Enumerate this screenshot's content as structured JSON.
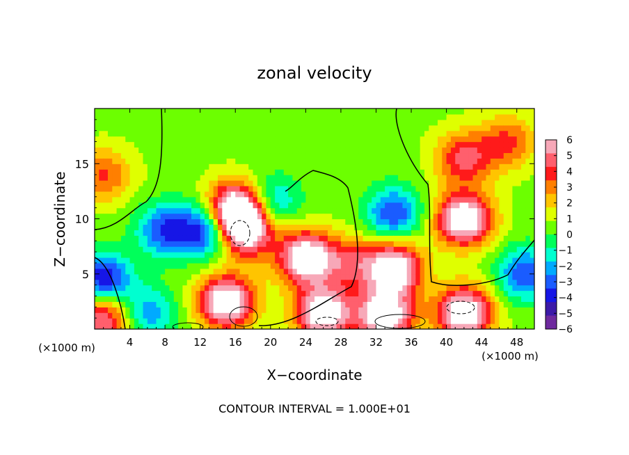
{
  "chart_data": {
    "type": "heatmap",
    "title": "zonal velocity",
    "xlabel": "X−coordinate",
    "ylabel": "Z−coordinate",
    "x_unit_label": "(×1000 m)",
    "x_unit_label_right": "(×1000 m)",
    "xlim": [
      0,
      50
    ],
    "ylim": [
      0,
      20
    ],
    "x_ticks": [
      4,
      8,
      12,
      16,
      20,
      24,
      28,
      32,
      36,
      40,
      44,
      48
    ],
    "x_tick_labels": [
      "4",
      "8",
      "12",
      "16",
      "20",
      "24",
      "28",
      "32",
      "36",
      "40",
      "44",
      "48"
    ],
    "y_ticks": [
      5,
      10,
      15
    ],
    "y_tick_labels": [
      "5",
      "10",
      "15"
    ],
    "colorbar": {
      "min": -6,
      "max": 6,
      "tick_values": [
        6,
        5,
        4,
        3,
        2,
        1,
        0,
        -1,
        -2,
        -3,
        -4,
        -5,
        -6
      ],
      "tick_labels": [
        "6",
        "5",
        "4",
        "3",
        "2",
        "1",
        "0",
        "−1",
        "−2",
        "−3",
        "−4",
        "−5",
        "−6"
      ],
      "colors": [
        "#f7a8b8",
        "#ff5f6d",
        "#ff1a1a",
        "#ff7f00",
        "#ffc400",
        "#dfff00",
        "#6cff00",
        "#00ff5a",
        "#00ffd0",
        "#00aaff",
        "#1a5cff",
        "#1616e6",
        "#3c1aa8",
        "#6e2a9e"
      ]
    },
    "contour_interval_text": "CONTOUR INTERVAL = 1.000E+01",
    "features": [
      {
        "kind": "low",
        "x": 1,
        "z": 4.5,
        "value": -5
      },
      {
        "kind": "high",
        "x": 1,
        "z": 14,
        "value": 3
      },
      {
        "kind": "low",
        "x": 13,
        "z": 9,
        "value": -5
      },
      {
        "kind": "low",
        "x": 8,
        "z": 9,
        "value": -4
      },
      {
        "kind": "high",
        "x": 17,
        "z": 9,
        "value": 7
      },
      {
        "kind": "high",
        "x": 16,
        "z": 11,
        "value": 7
      },
      {
        "kind": "high",
        "x": 24,
        "z": 6.5,
        "value": 7
      },
      {
        "kind": "low",
        "x": 20,
        "z": 11.5,
        "value": -3
      },
      {
        "kind": "low",
        "x": 34,
        "z": 10.5,
        "value": -4
      },
      {
        "kind": "high",
        "x": 34,
        "z": 5.5,
        "value": 7
      },
      {
        "kind": "high",
        "x": 42,
        "z": 10,
        "value": 7
      },
      {
        "kind": "high",
        "x": 42,
        "z": 15.5,
        "value": 4
      },
      {
        "kind": "high",
        "x": 47,
        "z": 17,
        "value": 3
      },
      {
        "kind": "high",
        "x": 15,
        "z": 2.5,
        "value": 7
      },
      {
        "kind": "high",
        "x": 26,
        "z": 1.5,
        "value": 7
      },
      {
        "kind": "high",
        "x": 33,
        "z": 1.2,
        "value": 7
      },
      {
        "kind": "high",
        "x": 42,
        "z": 1.5,
        "value": 7
      },
      {
        "kind": "low",
        "x": 6,
        "z": 1.5,
        "value": -3
      },
      {
        "kind": "high",
        "x": 1,
        "z": 1,
        "value": 5
      },
      {
        "kind": "low",
        "x": 49,
        "z": 5,
        "value": -4
      },
      {
        "kind": "high",
        "x": 29,
        "z": 6,
        "value": 3
      }
    ]
  }
}
